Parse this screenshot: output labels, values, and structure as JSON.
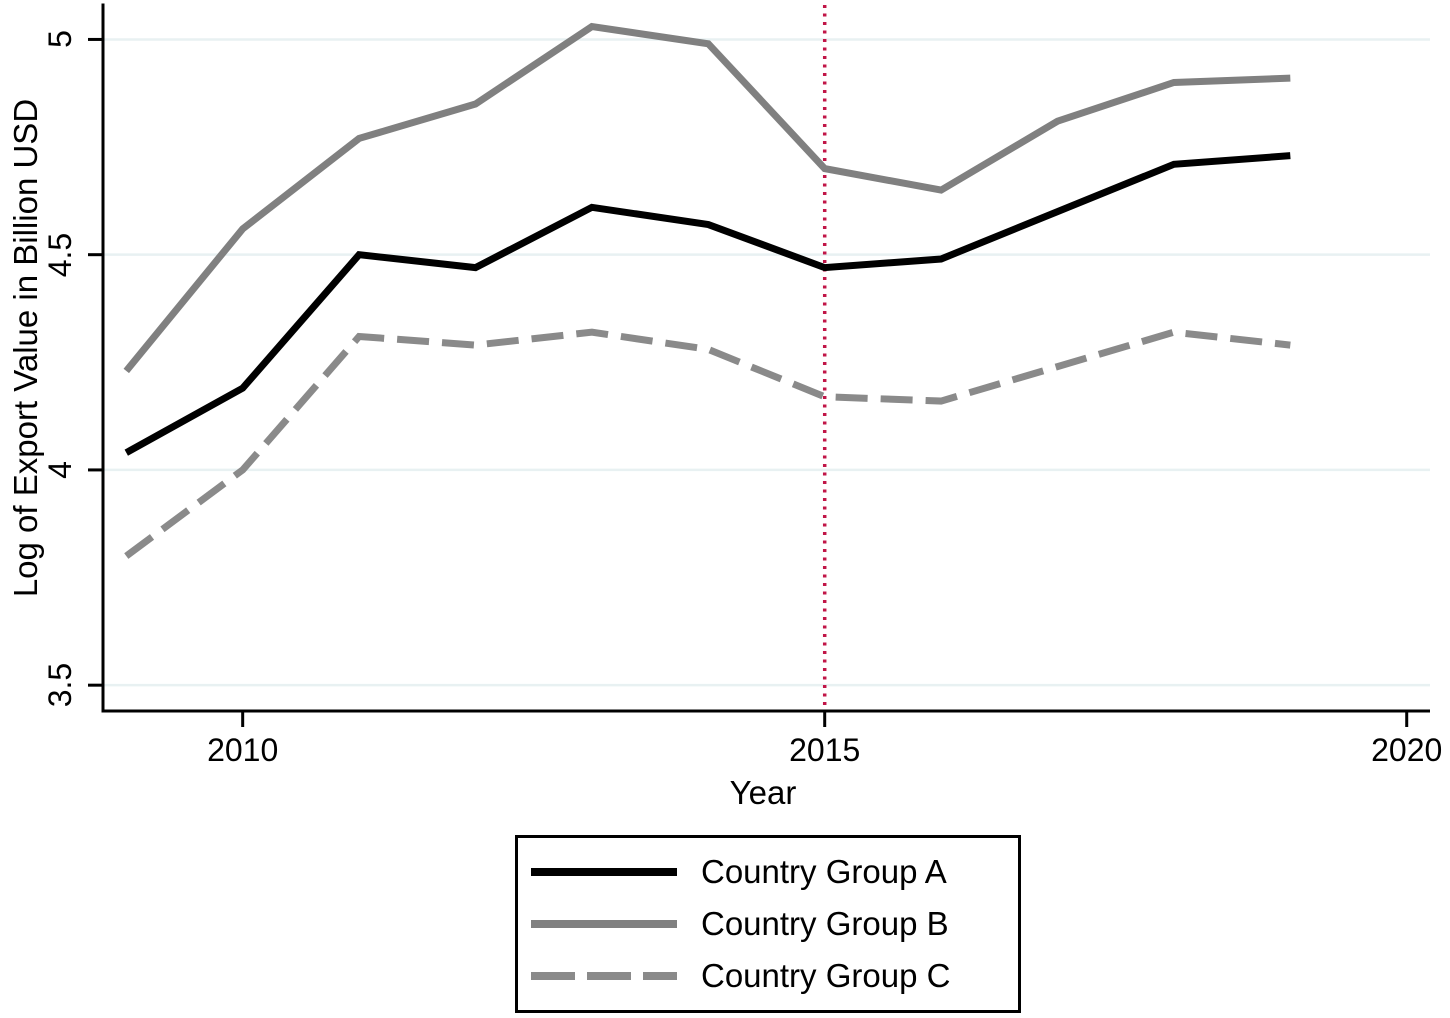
{
  "chart_data": {
    "type": "line",
    "title": "",
    "xlabel": "Year",
    "ylabel": "Log of Export Value in Billion USD",
    "x": [
      2009,
      2010,
      2011,
      2012,
      2013,
      2014,
      2015,
      2016,
      2017,
      2018,
      2019
    ],
    "series": [
      {
        "name": "Country Group A",
        "color": "#000000",
        "style": "solid",
        "values": [
          4.04,
          4.19,
          4.5,
          4.47,
          4.61,
          4.57,
          4.47,
          4.49,
          4.6,
          4.71,
          4.73
        ]
      },
      {
        "name": "Country Group B",
        "color": "#808080",
        "style": "solid",
        "values": [
          4.23,
          4.56,
          4.77,
          4.85,
          5.03,
          4.99,
          4.7,
          4.65,
          4.81,
          4.9,
          4.91
        ]
      },
      {
        "name": "Country Group C",
        "color": "#8a8a8a",
        "style": "dashed",
        "values": [
          3.8,
          4.0,
          4.31,
          4.29,
          4.32,
          4.28,
          4.17,
          4.16,
          4.24,
          4.32,
          4.29
        ]
      }
    ],
    "xticks": [
      2010,
      2015,
      2020
    ],
    "xtick_labels": [
      "2010",
      "2015",
      "2020"
    ],
    "yticks": [
      3.5,
      4,
      4.5,
      5
    ],
    "ytick_labels": [
      "3.5",
      "4",
      "4.5",
      "5"
    ],
    "xlim": [
      2008.8,
      2020.2
    ],
    "ylim": [
      3.44,
      5.08
    ],
    "grid": true,
    "grid_color": "#e8f1f2",
    "axis_color": "#000000",
    "vline": {
      "x": 2015,
      "color": "#c11547",
      "style": "dotted"
    },
    "legend_position": "bottom-center"
  }
}
